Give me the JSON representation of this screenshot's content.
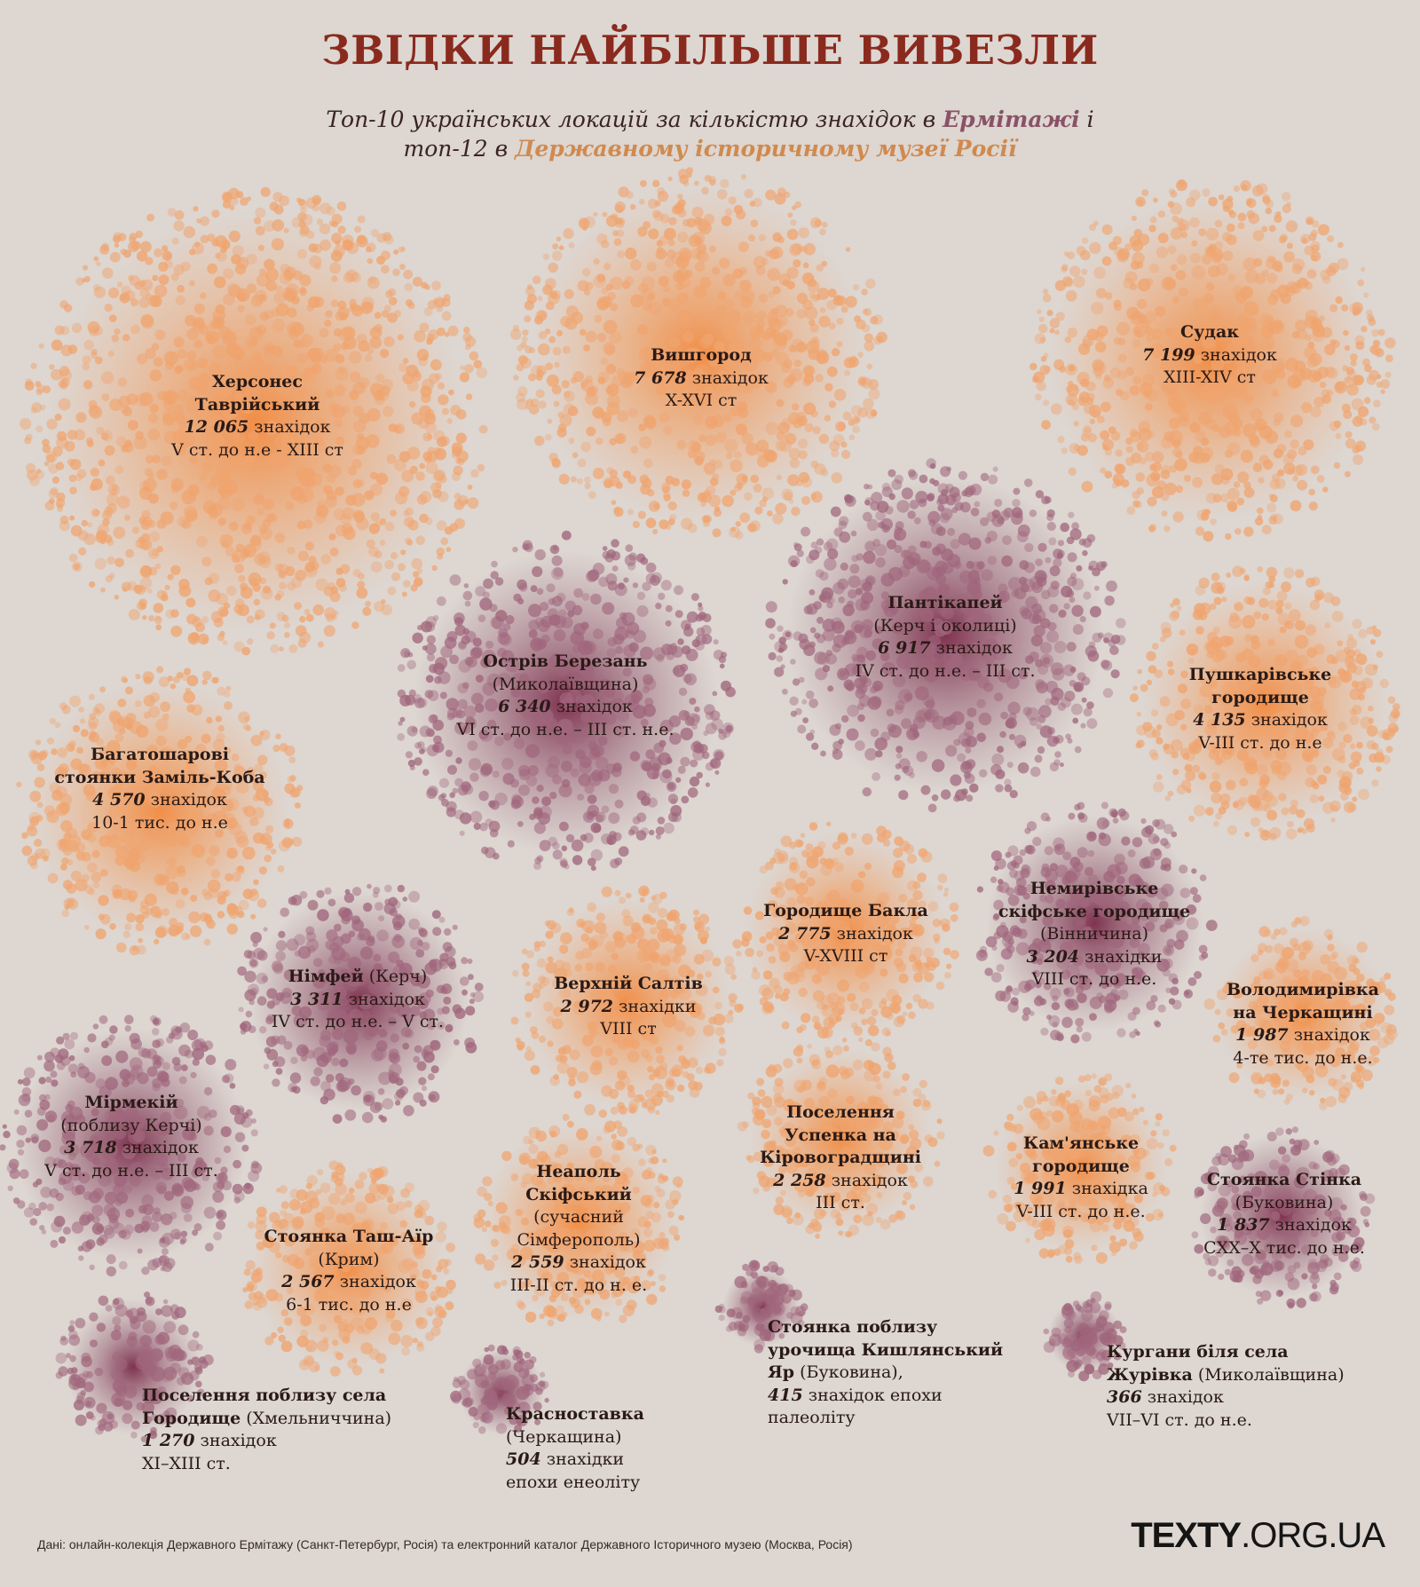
{
  "header": {
    "title": "ЗВІДКИ НАЙБІЛЬШЕ ВИВЕЗЛИ",
    "subtitle_line1_pre": "Топ-10 українських локацій за кількістю знахідок в ",
    "subtitle_hermitage": "Ермітажі",
    "subtitle_line1_post": " і",
    "subtitle_line2_pre": "топ-12 в ",
    "subtitle_museum": "Державному історичному музеї Росії"
  },
  "colors": {
    "hermitage": "#8a4c66",
    "state_museum": "#f0a064",
    "title": "#8a2a1e",
    "background": "#ddd6d1"
  },
  "chart_data": {
    "type": "bubble",
    "title": "ЗВІДКИ НАЙБІЛЬШЕ ВИВЕЗЛИ",
    "legend": {
      "hermitage": "Ермітаж",
      "state_museum": "Державний історичний музей Росії"
    },
    "unit": "знахідок",
    "items": [
      {
        "id": "khersones",
        "museum": "state_museum",
        "name_lines": [
          "Херсонес",
          "Таврійський"
        ],
        "count": 12065,
        "count_text": "12 065",
        "unit": "знахідок",
        "period": "V ст. до н.е - XIII ст"
      },
      {
        "id": "vyshhorod",
        "museum": "state_museum",
        "name_lines": [
          "Вишгород"
        ],
        "count": 7678,
        "count_text": "7 678",
        "unit": "знахідок",
        "period": "X-XVI ст"
      },
      {
        "id": "sudak",
        "museum": "state_museum",
        "name_lines": [
          "Судак"
        ],
        "count": 7199,
        "count_text": "7 199",
        "unit": "знахідок",
        "period": "XIII-XIV ст"
      },
      {
        "id": "pantikapei",
        "museum": "hermitage",
        "name_lines": [
          "Пантікапей"
        ],
        "note": "(Керч і околиці)",
        "count": 6917,
        "count_text": "6 917",
        "unit": "знахідок",
        "period": "IV ст. до н.е. – III ст."
      },
      {
        "id": "berezan",
        "museum": "hermitage",
        "name_lines": [
          "Острів Березань"
        ],
        "note": "(Миколаївщина)",
        "count": 6340,
        "count_text": "6 340",
        "unit": "знахідок",
        "period": "VI ст. до н.е. – III ст. н.е."
      },
      {
        "id": "zamil_koba",
        "museum": "state_museum",
        "name_lines": [
          "Багатошарові",
          "стоянки Заміль-Коба"
        ],
        "count": 4570,
        "count_text": "4 570",
        "unit": "знахідок",
        "period": "10-1 тис. до н.е"
      },
      {
        "id": "pushkarivske",
        "museum": "state_museum",
        "name_lines": [
          "Пушкарівське",
          "городище"
        ],
        "count": 4135,
        "count_text": "4 135",
        "unit": "знахідок",
        "period": "V-III ст. до н.е"
      },
      {
        "id": "myrmekii",
        "museum": "hermitage",
        "name_lines": [
          "Мірмекій"
        ],
        "note": "(поблизу Керчі)",
        "count": 3718,
        "count_text": "3 718",
        "unit": "знахідок",
        "period": "V ст. до н.е. – III ст."
      },
      {
        "id": "nimfei",
        "museum": "hermitage",
        "name_lines": [
          "Німфей"
        ],
        "inline_note": "(Керч)",
        "count": 3311,
        "count_text": "3 311",
        "unit": "знахідок",
        "period": "IV ст. до н.е. – V ст."
      },
      {
        "id": "nemyriv",
        "museum": "hermitage",
        "name_lines": [
          "Немирівське",
          "скіфське городище"
        ],
        "note": "(Вінничина)",
        "count": 3204,
        "count_text": "3 204",
        "unit": "знахідки",
        "period": "VIII ст. до н.е."
      },
      {
        "id": "saltiv",
        "museum": "state_museum",
        "name_lines": [
          "Верхній Салтів"
        ],
        "count": 2972,
        "count_text": "2 972",
        "unit": "знахідки",
        "period": "VIII ст"
      },
      {
        "id": "bakla",
        "museum": "state_museum",
        "name_lines": [
          "Городище Бакла"
        ],
        "count": 2775,
        "count_text": "2 775",
        "unit": "знахідок",
        "period": "V-XVIII ст"
      },
      {
        "id": "tash_air",
        "museum": "state_museum",
        "name_lines": [
          "Стоянка Таш-Аїр"
        ],
        "note": "(Крим)",
        "count": 2567,
        "count_text": "2 567",
        "unit": "знахідок",
        "period": "6-1 тис. до н.е"
      },
      {
        "id": "neapol",
        "museum": "state_museum",
        "name_lines": [
          "Неаполь",
          "Скіфський"
        ],
        "note_lines": [
          "(сучасний",
          "Сімферополь)"
        ],
        "count": 2559,
        "count_text": "2 559",
        "unit": "знахідок",
        "period": "III-II ст. до н. е."
      },
      {
        "id": "uspenka",
        "museum": "state_museum",
        "name_lines": [
          "Поселення",
          "Успенка на",
          "Кіровоградщині"
        ],
        "count": 2258,
        "count_text": "2 258",
        "unit": "знахідок",
        "period": "III ст."
      },
      {
        "id": "kamianske",
        "museum": "state_museum",
        "name_lines": [
          "Кам'янське",
          "городище"
        ],
        "count": 1991,
        "count_text": "1 991",
        "unit": "знахідка",
        "period": "V-III ст. до н.е."
      },
      {
        "id": "volodymyrivka",
        "museum": "state_museum",
        "name_lines": [
          "Володимирівка",
          "на Черкащині"
        ],
        "count": 1987,
        "count_text": "1 987",
        "unit": "знахідок",
        "period": "4-те тис. до н.е."
      },
      {
        "id": "stinka",
        "museum": "hermitage",
        "name_lines": [
          "Стоянка Стінка"
        ],
        "note": "(Буковина)",
        "count": 1837,
        "count_text": "1 837",
        "unit": "знахідок",
        "period": "СXX–X тис. до н.е."
      },
      {
        "id": "horodyshche",
        "museum": "hermitage",
        "name_lines": [
          "Поселення поблизу села"
        ],
        "name_tail": "Городище",
        "inline_note": "(Хмельниччина)",
        "count": 1270,
        "count_text": "1 270",
        "unit": "знахідок",
        "period": "XI–XIII ст."
      },
      {
        "id": "krasnostavka",
        "museum": "hermitage",
        "name_lines": [
          "Красноставка"
        ],
        "note": "(Черкащина)",
        "count": 504,
        "count_text": "504",
        "unit": "знахідки",
        "period": "епохи енеоліту"
      },
      {
        "id": "kyshliansky",
        "museum": "hermitage",
        "name_lines": [
          "Стоянка поблизу",
          "урочища Кишлянський"
        ],
        "name_tail": "Яр",
        "inline_note": "(Буковина),",
        "count": 415,
        "count_text": "415",
        "unit": "знахідок епохи",
        "period": "палеоліту"
      },
      {
        "id": "zhurivka",
        "museum": "hermitage",
        "name_lines": [
          "Кургани біля села"
        ],
        "name_tail": "Журівка",
        "inline_note": "(Миколаївщина)",
        "count": 366,
        "count_text": "366",
        "unit": "знахідок",
        "period": "VII–VI ст. до н.е."
      }
    ]
  },
  "footer": {
    "source": "Дані: онлайн-колекція Державного Ермітажу (Санкт-Петербург, Росія) та електронний каталог Державного Історичного музею (Москва, Росія)",
    "logo_bold": "TEXTY",
    "logo_rest": ".ORG.UA"
  }
}
